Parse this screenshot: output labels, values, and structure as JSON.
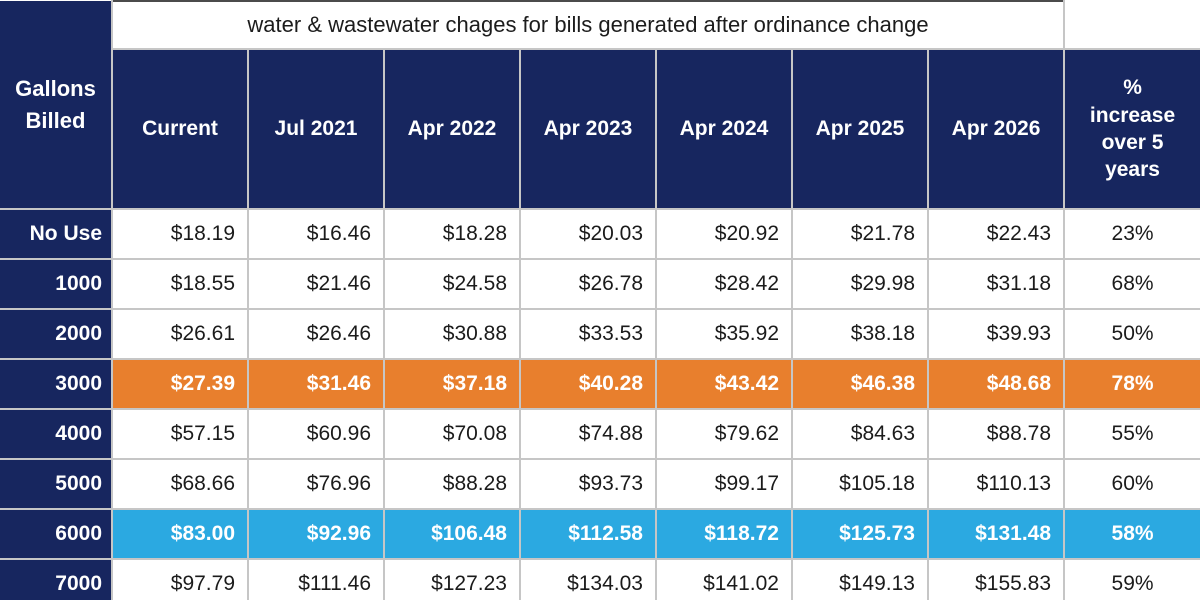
{
  "colors": {
    "navy": "#17265F",
    "orange": "#E87F2D",
    "highlight_blue": "#2BA9E1",
    "gridline": "#C6C6C6",
    "title_border": "#4B4B4B",
    "text_dark": "#1B1B1B",
    "text_light": "#FFFFFF"
  },
  "chart_data": {
    "type": "table",
    "title": "water & wastewater chages for bills generated after ordinance change",
    "corner_header": "Gallons Billed",
    "columns": [
      "Current",
      "Jul 2021",
      "Apr 2022",
      "Apr 2023",
      "Apr 2024",
      "Apr 2025",
      "Apr 2026",
      "% increase over 5 years"
    ],
    "rows": [
      {
        "label": "No Use",
        "values": [
          "$18.19",
          "$16.46",
          "$18.28",
          "$20.03",
          "$20.92",
          "$21.78",
          "$22.43"
        ],
        "pct": "23%",
        "highlight": "none"
      },
      {
        "label": "1000",
        "values": [
          "$18.55",
          "$21.46",
          "$24.58",
          "$26.78",
          "$28.42",
          "$29.98",
          "$31.18"
        ],
        "pct": "68%",
        "highlight": "none"
      },
      {
        "label": "2000",
        "values": [
          "$26.61",
          "$26.46",
          "$30.88",
          "$33.53",
          "$35.92",
          "$38.18",
          "$39.93"
        ],
        "pct": "50%",
        "highlight": "none"
      },
      {
        "label": "3000",
        "values": [
          "$27.39",
          "$31.46",
          "$37.18",
          "$40.28",
          "$43.42",
          "$46.38",
          "$48.68"
        ],
        "pct": "78%",
        "highlight": "orange"
      },
      {
        "label": "4000",
        "values": [
          "$57.15",
          "$60.96",
          "$70.08",
          "$74.88",
          "$79.62",
          "$84.63",
          "$88.78"
        ],
        "pct": "55%",
        "highlight": "none"
      },
      {
        "label": "5000",
        "values": [
          "$68.66",
          "$76.96",
          "$88.28",
          "$93.73",
          "$99.17",
          "$105.18",
          "$110.13"
        ],
        "pct": "60%",
        "highlight": "none"
      },
      {
        "label": "6000",
        "values": [
          "$83.00",
          "$92.96",
          "$106.48",
          "$112.58",
          "$118.72",
          "$125.73",
          "$131.48"
        ],
        "pct": "58%",
        "highlight": "blue"
      },
      {
        "label": "7000",
        "values": [
          "$97.79",
          "$111.46",
          "$127.23",
          "$134.03",
          "$141.02",
          "$149.13",
          "$155.83"
        ],
        "pct": "59%",
        "highlight": "none"
      }
    ]
  }
}
